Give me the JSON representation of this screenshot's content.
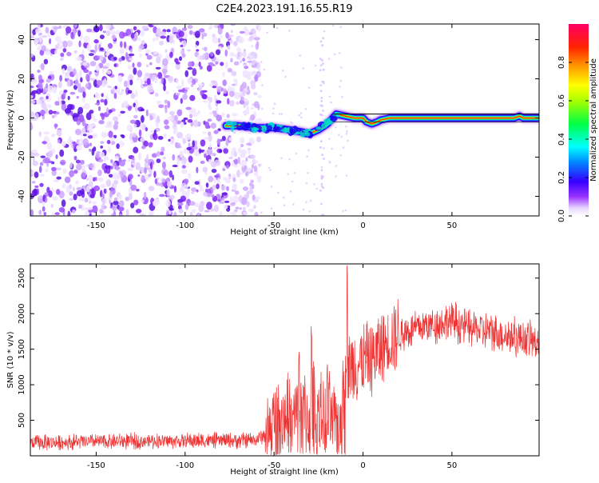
{
  "figure": {
    "title": "C2E4.2023.191.16.55.R19"
  },
  "chart_data": [
    {
      "type": "heatmap",
      "xlabel": "Height of straight line (km)",
      "ylabel": "Frequency (Hz)",
      "xlim": [
        -187,
        99
      ],
      "ylim": [
        -50,
        48
      ],
      "xticks": [
        -150,
        -100,
        -50,
        0,
        50
      ],
      "yticks": [
        -40,
        -20,
        0,
        20,
        40
      ],
      "noise_region_x": [
        -187,
        -60
      ],
      "signal_trace": {
        "x": [
          -77,
          -70,
          -60,
          -50,
          -42,
          -35,
          -30,
          -25,
          -20,
          -17,
          -15,
          -10,
          -5,
          0,
          2,
          5,
          8,
          10,
          15,
          20,
          30,
          40,
          50,
          60,
          70,
          80,
          85,
          88,
          90,
          99
        ],
        "y": [
          -4,
          -4,
          -5,
          -5,
          -6,
          -7,
          -8,
          -6,
          -3,
          0,
          2,
          1,
          0,
          0,
          -2,
          -3,
          -2,
          -1,
          0,
          0,
          0,
          0,
          0,
          0,
          0,
          0,
          0,
          1,
          0,
          0
        ]
      },
      "colorbar": {
        "label": "Normalized spectral amplitude",
        "range": [
          0,
          1
        ],
        "ticks": [
          "0.0",
          "0.2",
          "0.4",
          "0.6",
          "0.8"
        ]
      }
    },
    {
      "type": "line",
      "xlabel": "Height of straight line (km)",
      "ylabel": "SNR (10 * v/v)",
      "xlim": [
        -187,
        99
      ],
      "ylim": [
        0,
        2700
      ],
      "xticks": [
        -150,
        -100,
        -50,
        0,
        50
      ],
      "yticks": [
        500,
        1000,
        1500,
        2000,
        2500
      ],
      "color": "#ee3333",
      "envelope": {
        "x": [
          -187,
          -150,
          -100,
          -60,
          -55,
          -50,
          -45,
          -40,
          -35,
          -30,
          -25,
          -20,
          -15,
          -12,
          -10,
          -8,
          -5,
          0,
          5,
          10,
          15,
          20,
          25,
          30,
          40,
          50,
          60,
          70,
          80,
          90,
          99
        ],
        "y": [
          180,
          200,
          210,
          220,
          300,
          450,
          550,
          450,
          650,
          500,
          600,
          500,
          450,
          600,
          900,
          1200,
          1300,
          1300,
          1400,
          1500,
          1650,
          1700,
          1750,
          1800,
          1850,
          1900,
          1800,
          1750,
          1700,
          1650,
          1600
        ]
      },
      "peaks": [
        {
          "x": -9,
          "y": 2700
        },
        {
          "x": -29,
          "y": 1850
        },
        {
          "x": -36,
          "y": 1500
        },
        {
          "x": -20,
          "y": 1300
        }
      ]
    }
  ]
}
